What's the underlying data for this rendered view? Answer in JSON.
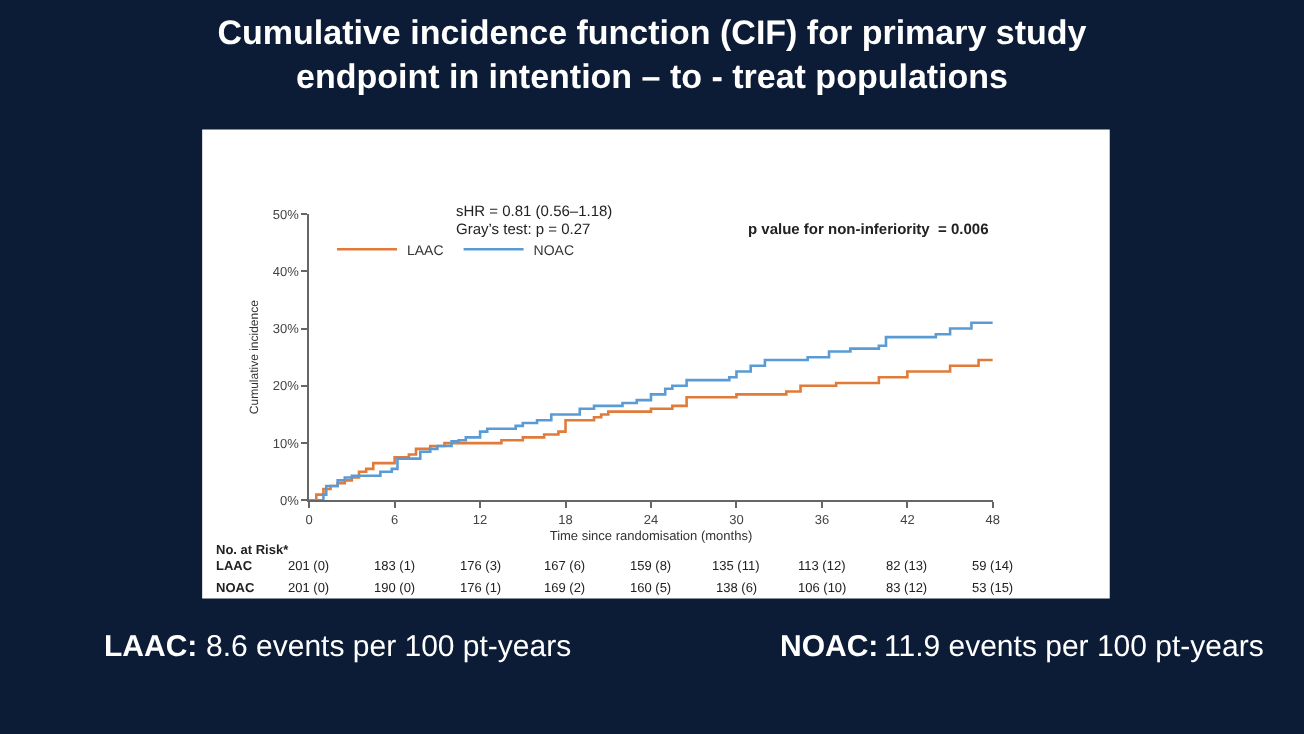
{
  "chart_data": {
    "type": "step",
    "title": "Cumulative incidence function (CIF) for primary study\nendpoint in intention – to - treat populations",
    "xlabel": "Time since randomisation (months)",
    "ylabel": "Cumulative incidence",
    "series": [
      {
        "name": "LAAC",
        "color": "#e07b39",
        "x": [
          0,
          0.5,
          1,
          1.5,
          2,
          2.5,
          3,
          3.5,
          4,
          4.5,
          5.5,
          6,
          7,
          7.5,
          8.5,
          9.5,
          13.5,
          15,
          16.5,
          17.5,
          18,
          20,
          20.5,
          21,
          24,
          25.5,
          26.5,
          30,
          33.5,
          34.5,
          37,
          40,
          42,
          45,
          47,
          48
        ],
        "values": [
          0,
          1,
          2,
          2.5,
          3,
          3.5,
          4,
          5,
          5.5,
          6.5,
          6.5,
          7.5,
          8,
          9,
          9.5,
          10,
          10.5,
          11,
          11.5,
          12,
          14,
          14.5,
          15,
          15.5,
          16,
          16.5,
          18,
          18.5,
          19,
          20,
          20.5,
          21.5,
          22.5,
          23.5,
          24.5,
          24.5
        ]
      },
      {
        "name": "NOAC",
        "color": "#5b9bd5",
        "x": [
          0,
          1,
          1.2,
          2,
          2.5,
          3,
          4,
          5,
          5.8,
          6.2,
          7,
          7.8,
          8.5,
          9,
          10,
          10.5,
          11,
          12,
          12.5,
          14.5,
          15,
          16,
          17,
          19,
          20,
          22,
          23,
          24,
          25,
          25.5,
          26.5,
          29.5,
          30,
          31,
          32,
          35,
          36.5,
          38,
          40,
          40.5,
          44,
          45,
          46.5,
          48
        ],
        "values": [
          0,
          1,
          2.5,
          3.5,
          4,
          4.3,
          4.3,
          5,
          5.5,
          7.3,
          7.3,
          8.5,
          9,
          9.5,
          10.3,
          10.5,
          11,
          12,
          12.5,
          13,
          13.5,
          14,
          15,
          16,
          16.5,
          17,
          17.5,
          18.5,
          19.5,
          20,
          21,
          21.5,
          22.5,
          23.5,
          24.5,
          25,
          26,
          26.5,
          27,
          28.5,
          29,
          30,
          31,
          31
        ]
      }
    ],
    "xlim": [
      0,
      48
    ],
    "xticks": [
      0,
      6,
      12,
      18,
      24,
      30,
      36,
      42,
      48
    ],
    "ylim": [
      0,
      50
    ],
    "yticks": [
      {
        "value": 0,
        "label": "0%"
      },
      {
        "value": 10,
        "label": "10%"
      },
      {
        "value": 20,
        "label": "20%"
      },
      {
        "value": 30,
        "label": "30%"
      },
      {
        "value": 40,
        "label": "40%"
      },
      {
        "value": 50,
        "label": "50%"
      }
    ],
    "legend": "top left",
    "marker": "none",
    "line_style": "solid",
    "annotations": [
      "sHR = 0.81 (0.56–1.18)",
      "Gray’s test: p = 0.27",
      "p value for non-inferiority  = 0.006",
      "No. at Risk*",
      "LAAC",
      "201 (0)",
      "183 (1)",
      "176 (3)",
      "167 (6)",
      "159 (8)",
      "135 (11)",
      "113 (12)",
      "82 (13)",
      "59 (14)",
      "NOAC",
      "201 (0)",
      "190 (0)",
      "176 (1)",
      "169 (2)",
      "160 (5)",
      "138 (6)",
      "106 (10)",
      "83 (12)",
      "53 (15)",
      "LAAC:",
      "8.6 events per 100 pt-years",
      "NOAC:",
      "11.9 events per 100 pt-years"
    ]
  }
}
